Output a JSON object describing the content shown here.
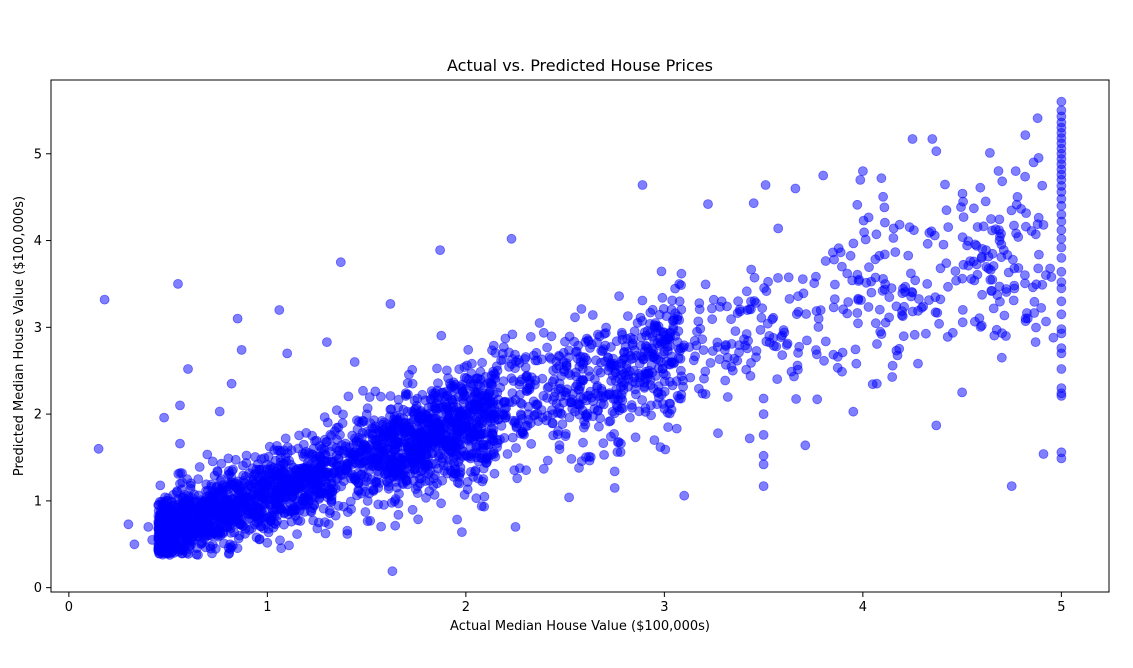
{
  "chart_data": {
    "type": "scatter",
    "title": "Actual vs. Predicted House Prices",
    "xlabel": "Actual Median House Value ($100,000s)",
    "ylabel": "Predicted Median House Value ($100,000s)",
    "xlim": [
      -0.09,
      5.24
    ],
    "ylim": [
      -0.05,
      5.85
    ],
    "xticks": [
      0,
      1,
      2,
      3,
      4,
      5
    ],
    "yticks": [
      0,
      1,
      2,
      3,
      4,
      5
    ],
    "grid": false,
    "legend": "none",
    "point_color": "#0000ff",
    "point_alpha": 0.5,
    "series": [
      {
        "points": [
          [
            0.15,
            1.6
          ],
          [
            0.18,
            3.32
          ],
          [
            0.3,
            0.73
          ],
          [
            0.33,
            0.5
          ],
          [
            0.4,
            0.7
          ],
          [
            0.42,
            0.55
          ],
          [
            0.45,
            0.95
          ],
          [
            0.48,
            1.96
          ],
          [
            0.5,
            0.4
          ],
          [
            0.55,
            3.5
          ],
          [
            0.56,
            2.1
          ],
          [
            0.56,
            1.66
          ],
          [
            0.57,
            1.32
          ],
          [
            0.6,
            2.52
          ],
          [
            0.85,
            3.1
          ],
          [
            0.87,
            2.74
          ],
          [
            0.76,
            2.03
          ],
          [
            0.82,
            2.35
          ],
          [
            1.06,
            3.2
          ],
          [
            1.1,
            2.7
          ],
          [
            1.3,
            2.83
          ],
          [
            1.37,
            3.75
          ],
          [
            1.44,
            2.6
          ],
          [
            1.62,
            3.27
          ],
          [
            1.63,
            0.19
          ],
          [
            1.87,
            3.89
          ],
          [
            1.98,
            0.64
          ],
          [
            2.08,
            0.94
          ],
          [
            2.25,
            0.7
          ],
          [
            2.23,
            4.02
          ],
          [
            2.52,
            1.04
          ],
          [
            2.57,
            1.38
          ],
          [
            2.59,
            1.67
          ],
          [
            2.75,
            1.15
          ],
          [
            2.75,
            1.34
          ],
          [
            2.95,
            1.7
          ],
          [
            2.98,
            1.62
          ],
          [
            3.1,
            1.06
          ],
          [
            3.27,
            1.78
          ],
          [
            3.43,
            1.72
          ],
          [
            3.5,
            1.17
          ],
          [
            3.5,
            1.42
          ],
          [
            3.5,
            1.52
          ],
          [
            3.5,
            1.76
          ],
          [
            3.5,
            2.0
          ],
          [
            3.5,
            2.18
          ],
          [
            3.71,
            1.64
          ],
          [
            3.77,
            2.17
          ],
          [
            4.07,
            2.35
          ],
          [
            4.37,
            1.87
          ],
          [
            4.5,
            2.25
          ],
          [
            4.75,
            1.17
          ],
          [
            4.91,
            1.54
          ],
          [
            2.89,
            4.64
          ],
          [
            3.22,
            4.42
          ],
          [
            3.45,
            4.43
          ],
          [
            3.51,
            4.64
          ],
          [
            3.66,
            4.6
          ],
          [
            3.8,
            4.75
          ],
          [
            4.0,
            4.8
          ],
          [
            4.25,
            5.17
          ],
          [
            4.35,
            5.17
          ],
          [
            4.37,
            5.03
          ],
          [
            4.64,
            5.01
          ],
          [
            4.77,
            4.8
          ],
          [
            4.86,
            4.9
          ],
          [
            4.71,
            3.89
          ],
          [
            4.85,
            4.11
          ],
          [
            4.91,
            4.18
          ],
          [
            4.95,
            3.58
          ],
          [
            4.82,
            3.07
          ],
          [
            4.87,
            2.83
          ],
          [
            4.7,
            2.65
          ],
          [
            4.96,
            2.88
          ],
          [
            5.0,
            1.49
          ],
          [
            5.0,
            1.56
          ],
          [
            5.0,
            2.21
          ],
          [
            5.0,
            2.24
          ],
          [
            5.0,
            2.3
          ],
          [
            5.0,
            2.52
          ],
          [
            5.0,
            2.7
          ],
          [
            5.0,
            2.76
          ],
          [
            5.0,
            2.93
          ],
          [
            5.0,
            2.98
          ],
          [
            5.0,
            3.15
          ],
          [
            5.0,
            3.3
          ],
          [
            5.0,
            3.45
          ],
          [
            5.0,
            3.52
          ],
          [
            5.0,
            3.64
          ],
          [
            5.0,
            3.8
          ],
          [
            5.0,
            3.92
          ],
          [
            5.0,
            4.02
          ],
          [
            5.0,
            4.12
          ],
          [
            5.0,
            4.22
          ],
          [
            5.0,
            4.3
          ],
          [
            5.0,
            4.4
          ],
          [
            5.0,
            4.48
          ],
          [
            5.0,
            4.56
          ],
          [
            5.0,
            4.63
          ],
          [
            5.0,
            4.7
          ],
          [
            5.0,
            4.76
          ],
          [
            5.0,
            4.82
          ],
          [
            5.0,
            4.88
          ],
          [
            5.0,
            4.94
          ],
          [
            5.0,
            5.0
          ],
          [
            5.0,
            5.06
          ],
          [
            5.0,
            5.12
          ],
          [
            5.0,
            5.18
          ],
          [
            5.0,
            5.24
          ],
          [
            5.0,
            5.3
          ],
          [
            5.0,
            5.36
          ],
          [
            5.0,
            5.43
          ],
          [
            5.0,
            5.5
          ],
          [
            5.0,
            5.6
          ]
        ]
      }
    ]
  }
}
